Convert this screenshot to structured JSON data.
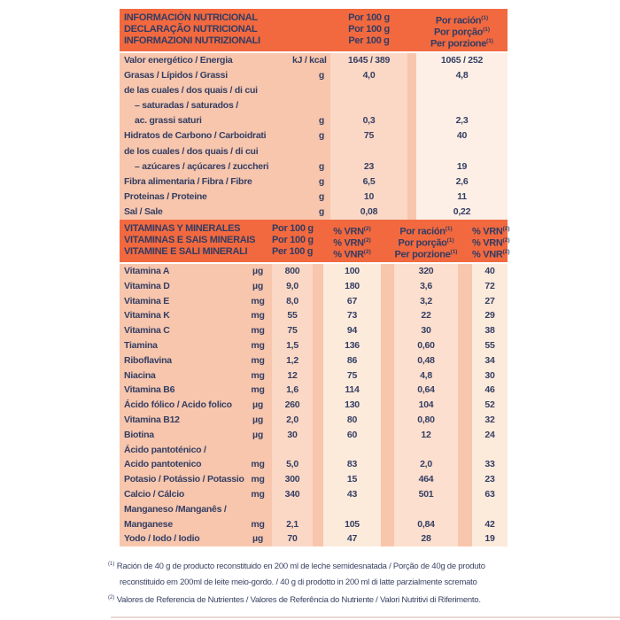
{
  "colors": {
    "header_orange": "#F2693F",
    "text_navy": "#323C63",
    "label_salmon": "#F7C6AD",
    "col_per100_pink": "#FBD8C5",
    "col_portion_light": "#FDEFE5",
    "col_vrn_cream": "#FCEADB",
    "col_portion_pink": "#FCDFCE",
    "footnote_text": "#3A4364",
    "bottom_rule": "#EBD8D2"
  },
  "table1": {
    "header": {
      "titles": [
        "INFORMACIÓN NUTRICIONAL",
        "DECLARAÇÃO NUTRICIONAL",
        "INFORMAZIONI NUTRIZIONALI"
      ],
      "per_100g": [
        "Por 100 g",
        "Por 100 g",
        "Per 100 g"
      ],
      "per_portion": [
        {
          "text": "Por ración",
          "sup": "(1)"
        },
        {
          "text": "Por porção",
          "sup": "(1)"
        },
        {
          "text": "Per porzione",
          "sup": "(1)"
        }
      ]
    },
    "rows": [
      {
        "label": "Valor energético / Energia",
        "unit": "kJ / kcal",
        "per100": "1645 / 389",
        "portion": "1065 / 252"
      },
      {
        "label": "Grasas / Lípidos / Grassi",
        "unit": "g",
        "per100": "4,0",
        "portion": "4,8"
      },
      {
        "label": "de las cuales / dos quais / di cui",
        "unit": "",
        "per100": "",
        "portion": ""
      },
      {
        "label": "– saturadas / saturados /",
        "indent": true,
        "unit": "",
        "per100": "",
        "portion": ""
      },
      {
        "label": "ac. grassi saturi",
        "indent": true,
        "unit": "g",
        "per100": "0,3",
        "portion": "2,3"
      },
      {
        "label": "Hidratos de Carbono / Carboidrati",
        "unit": "g",
        "per100": "75",
        "portion": "40"
      },
      {
        "label": "de los cuales / dos quais / di cui",
        "unit": "",
        "per100": "",
        "portion": ""
      },
      {
        "label": "– azúcares / açúcares / zuccheri",
        "indent": true,
        "unit": "g",
        "per100": "23",
        "portion": "19"
      },
      {
        "label": "Fibra alimentaria / Fibra / Fibre",
        "unit": "g",
        "per100": "6,5",
        "portion": "2,6"
      },
      {
        "label": "Proteinas / Proteine",
        "unit": "g",
        "per100": "10",
        "portion": "11"
      },
      {
        "label": "Sal / Sale",
        "unit": "g",
        "per100": "0,08",
        "portion": "0,22"
      }
    ]
  },
  "table2": {
    "header": {
      "titles": [
        "VITAMINAS Y MINERALES",
        "VITAMINAS E SAIS MINERAIS",
        "VITAMINE E SALI MINERALI"
      ],
      "per_100g": [
        "Por 100 g",
        "Por 100 g",
        "Per 100 g"
      ],
      "vrn_100g": [
        {
          "text": "% VRN",
          "sup": "(2)"
        },
        {
          "text": "% VRN",
          "sup": "(2)"
        },
        {
          "text": "% VNR",
          "sup": "(2)"
        }
      ],
      "per_portion": [
        {
          "text": "Por ración",
          "sup": "(1)"
        },
        {
          "text": "Por porção",
          "sup": "(1)"
        },
        {
          "text": "Per porzione",
          "sup": "(1)"
        }
      ],
      "vrn_portion": [
        {
          "text": "% VRN",
          "sup": "(2)"
        },
        {
          "text": "% VRN",
          "sup": "(2)"
        },
        {
          "text": "% VNR",
          "sup": "(2)"
        }
      ]
    },
    "rows": [
      {
        "label": "Vitamina A",
        "unit": "µg",
        "per100": "800",
        "vrn": "100",
        "portion": "320",
        "vrnp": "40"
      },
      {
        "label": "Vitamina D",
        "unit": "µg",
        "per100": "9,0",
        "vrn": "180",
        "portion": "3,6",
        "vrnp": "72"
      },
      {
        "label": "Vitamina E",
        "unit": "mg",
        "per100": "8,0",
        "vrn": "67",
        "portion": "3,2",
        "vrnp": "27"
      },
      {
        "label": "Vitamina K",
        "unit": "mg",
        "per100": "55",
        "vrn": "73",
        "portion": "22",
        "vrnp": "29"
      },
      {
        "label": "Vitamina C",
        "unit": "mg",
        "per100": "75",
        "vrn": "94",
        "portion": "30",
        "vrnp": "38"
      },
      {
        "label": "Tiamina",
        "unit": "mg",
        "per100": "1,5",
        "vrn": "136",
        "portion": "0,60",
        "vrnp": "55"
      },
      {
        "label": "Riboflavina",
        "unit": "mg",
        "per100": "1,2",
        "vrn": "86",
        "portion": "0,48",
        "vrnp": "34"
      },
      {
        "label": "Niacina",
        "unit": "mg",
        "per100": "12",
        "vrn": "75",
        "portion": "4,8",
        "vrnp": "30"
      },
      {
        "label": "Vitamina B6",
        "unit": "mg",
        "per100": "1,6",
        "vrn": "114",
        "portion": "0,64",
        "vrnp": "46"
      },
      {
        "label": "Ácido fólico / Acido folico",
        "unit": "µg",
        "per100": "260",
        "vrn": "130",
        "portion": "104",
        "vrnp": "52"
      },
      {
        "label": "Vitamina B12",
        "unit": "µg",
        "per100": "2,0",
        "vrn": "80",
        "portion": "0,80",
        "vrnp": "32"
      },
      {
        "label": "Biotina",
        "unit": "µg",
        "per100": "30",
        "vrn": "60",
        "portion": "12",
        "vrnp": "24"
      },
      {
        "label": "Ácido pantoténico /",
        "unit": "",
        "per100": "",
        "vrn": "",
        "portion": "",
        "vrnp": ""
      },
      {
        "label": "Acido pantotenico",
        "unit": "mg",
        "per100": "5,0",
        "vrn": "83",
        "portion": "2,0",
        "vrnp": "33"
      },
      {
        "label": "Potasio / Potássio / Potassio",
        "unit": "mg",
        "per100": "300",
        "vrn": "15",
        "portion": "464",
        "vrnp": "23"
      },
      {
        "label": "Calcio / Cálcio",
        "unit": "mg",
        "per100": "340",
        "vrn": "43",
        "portion": "501",
        "vrnp": "63"
      },
      {
        "label": "Manganeso /Manganês /",
        "unit": "",
        "per100": "",
        "vrn": "",
        "portion": "",
        "vrnp": ""
      },
      {
        "label": "Manganese",
        "unit": "mg",
        "per100": "2,1",
        "vrn": "105",
        "portion": "0,84",
        "vrnp": "42"
      },
      {
        "label": "Yodo / Iodo / Iodio",
        "unit": "µg",
        "per100": "70",
        "vrn": "47",
        "portion": "28",
        "vrnp": "19"
      }
    ]
  },
  "footnotes": [
    {
      "sup": "(1)",
      "text": "Ración de 40 g de producto reconstituido en 200 ml de leche semidesnatada / Porção de 40g de produto reconstituido em 200ml de leite meio-gordo. / 40 g di prodotto in 200 ml di latte parzialmente scremato"
    },
    {
      "sup": "(2)",
      "text": "Valores de Referencia de Nutrientes / Valores de Referência do Nutriente / Valori Nutritivi di Riferimento."
    }
  ]
}
